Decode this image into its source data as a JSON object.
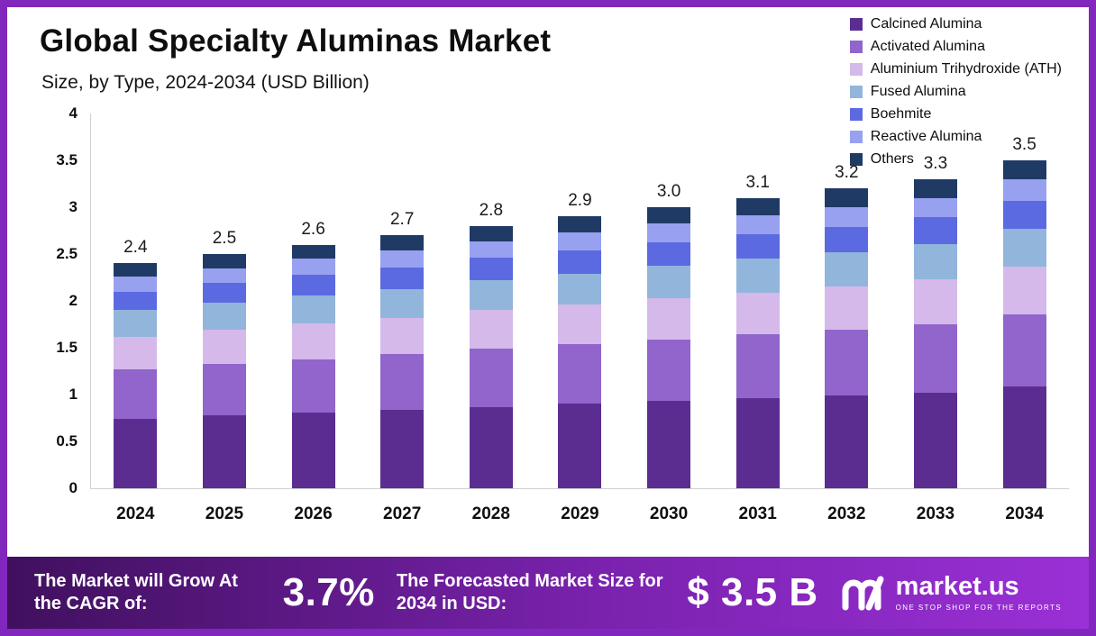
{
  "page": {
    "title": "Global Specialty Aluminas Market",
    "subtitle": "Size, by Type, 2024-2034 (USD Billion)"
  },
  "chart_data": {
    "type": "bar",
    "stacked": true,
    "title": "Global Specialty Aluminas Market Size, by Type, 2024-2034 (USD Billion)",
    "categories": [
      "2024",
      "2025",
      "2026",
      "2027",
      "2028",
      "2029",
      "2030",
      "2031",
      "2032",
      "2033",
      "2034"
    ],
    "totals": [
      "2.4",
      "2.5",
      "2.6",
      "2.7",
      "2.8",
      "2.9",
      "3.0",
      "3.1",
      "3.2",
      "3.3",
      "3.5"
    ],
    "ylim": [
      0,
      4
    ],
    "ytick_labels": [
      "0",
      "0.5",
      "1",
      "1.5",
      "2",
      "2.5",
      "3",
      "3.5",
      "4"
    ],
    "grid": false,
    "legend_position": "top-right",
    "series": [
      {
        "name": "Calcined Alumina",
        "color": "#5c2d91",
        "values": [
          0.74,
          0.78,
          0.81,
          0.84,
          0.87,
          0.9,
          0.93,
          0.96,
          0.99,
          1.02,
          1.09
        ]
      },
      {
        "name": "Activated Alumina",
        "color": "#9165cb",
        "values": [
          0.53,
          0.55,
          0.57,
          0.59,
          0.62,
          0.64,
          0.66,
          0.68,
          0.7,
          0.73,
          0.77
        ]
      },
      {
        "name": "Aluminium Trihydroxide (ATH)",
        "color": "#d4b9ea",
        "values": [
          0.35,
          0.36,
          0.38,
          0.39,
          0.41,
          0.42,
          0.44,
          0.45,
          0.46,
          0.48,
          0.51
        ]
      },
      {
        "name": "Fused Alumina",
        "color": "#92b5dc",
        "values": [
          0.28,
          0.29,
          0.3,
          0.31,
          0.32,
          0.33,
          0.35,
          0.36,
          0.37,
          0.38,
          0.4
        ]
      },
      {
        "name": "Boehmite",
        "color": "#5b6ae0",
        "values": [
          0.2,
          0.21,
          0.22,
          0.23,
          0.24,
          0.25,
          0.25,
          0.26,
          0.27,
          0.28,
          0.3
        ]
      },
      {
        "name": "Reactive Alumina",
        "color": "#97a1f0",
        "values": [
          0.16,
          0.16,
          0.17,
          0.18,
          0.18,
          0.19,
          0.2,
          0.2,
          0.21,
          0.21,
          0.23
        ]
      },
      {
        "name": "Others",
        "color": "#203a66",
        "values": [
          0.14,
          0.15,
          0.15,
          0.16,
          0.16,
          0.17,
          0.17,
          0.19,
          0.2,
          0.2,
          0.2
        ]
      }
    ]
  },
  "footer": {
    "cagr_label": "The Market will Grow At the CAGR of:",
    "cagr_value": "3.7%",
    "forecast_label": "The Forecasted Market Size for 2034 in USD:",
    "forecast_value": "$ 3.5 B",
    "brand": "market.us",
    "brand_tagline": "ONE STOP SHOP FOR THE REPORTS"
  },
  "colors": {
    "frame_border": "#8227be",
    "footer_gradient_start": "#40105e",
    "footer_gradient_end": "#9a30d6",
    "background": "#ffffff"
  }
}
